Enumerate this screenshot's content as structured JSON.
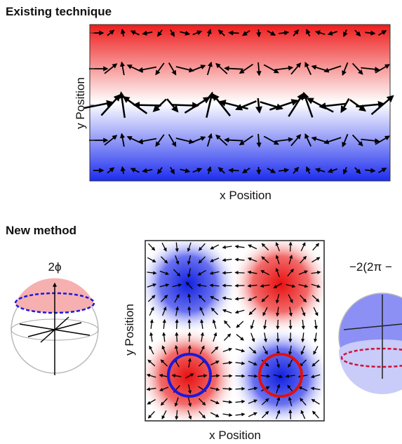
{
  "existing": {
    "title": "Existing technique",
    "y_label": "y Position",
    "x_label": "x Position"
  },
  "new_method": {
    "title": "New method",
    "left_label": "2ϕ",
    "y_label": "y Position",
    "x_label": "x Position",
    "right_label": "−2(2π −"
  }
}
